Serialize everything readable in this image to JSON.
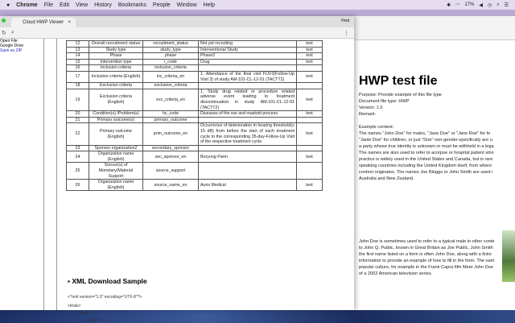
{
  "menubar": {
    "items": [
      "Chrome",
      "File",
      "Edit",
      "View",
      "History",
      "Bookmarks",
      "People",
      "Window",
      "Help"
    ],
    "battery": "17%"
  },
  "browser": {
    "tab_title": "Cloud HWP Viewer",
    "find_label": "Find",
    "sidebar": {
      "open_file": "Open File",
      "google_drive": "Google Drive",
      "save_zip": "Save as ZIP"
    }
  },
  "table": {
    "rows": [
      [
        "12",
        "Overall recruitment status",
        "recruitment_status",
        "Not yet recruiting",
        "text"
      ],
      [
        "13",
        "Study type",
        "study_type",
        "Interventional Study",
        "text"
      ],
      [
        "14",
        "Phase",
        "phase",
        "Phase3",
        "text"
      ],
      [
        "15",
        "Intervention type",
        "i_code",
        "Drug",
        "text"
      ],
      [
        "16",
        "Inclusion criteria",
        "inclusion_criteria",
        "",
        ""
      ],
      [
        "17",
        "Inclusion criteria (English)",
        "inc_criteria_en",
        "1. Attendance of the final visit FUV3(Follow-Up Visit 3) of study AM-101-CL-12-01 (TACTT2)",
        "text"
      ],
      [
        "18",
        "Exclusion criteria",
        "exclusion_criteria",
        "",
        ""
      ],
      [
        "19",
        "Exclusion criteria (English)",
        "exc_criteria_en",
        "1. Study drug related or procedure related adverse event leading to treatment discontinuation in study AM-101-CL-12-01 (TACTT2)",
        "text"
      ],
      [
        "20",
        "Condition(s) /Problem(s)",
        "hc_code",
        "Diseases of the ear and mastoid process",
        "text"
      ],
      [
        "21",
        "Primary outcome(s)",
        "primary_outcome",
        "",
        ""
      ],
      [
        "22",
        "Primary outcome (English)",
        "prim_outcome_en",
        "Occurrence of deterioration in hearing threshold(≥ 15 dB) from before the start of each treatment cycle to the corresponding 35-day-Follow-Up Visit of the respective treatment cycle",
        "text"
      ],
      [
        "23",
        "Sponsor organization2",
        "secondary_sponsor",
        "",
        ""
      ],
      [
        "24",
        "Organization name (English)",
        "sec_sponsor_en",
        "Boryung Parm",
        "text"
      ],
      [
        "25",
        "Soruce(s) of Monetary/Material Support",
        "source_support",
        "",
        ""
      ],
      [
        "26",
        "Organization name (English)",
        "source_name_en",
        "Auris Medical",
        "text"
      ]
    ]
  },
  "xml_section": {
    "heading": "▪ XML Download Sample",
    "lines": [
      "<?xml version=\"1.0\" encoding=\"UTF-8\"?>",
      "<trials>",
      "<trial>",
      "<main>"
    ]
  },
  "right_doc": {
    "title": "HWP test file",
    "meta": [
      "Purpose: Provide example of this file type",
      "Document file type: HWP",
      "Version: 1.0",
      "Remark:"
    ],
    "example_label": "Example content:",
    "para1": [
      "The names \"John Doe\" for males, \"Jane Doe\" or \"Jane Roe\" for fe",
      "\"Janie Doe\" for children, or just \"Doe\" non-gender-specifically are u",
      "a party whose true identity is unknown or must be withheld in a lega",
      "The names are also used to refer to acorpse or hospital patient who",
      "practice is widely used in the United States and Canada, but is rare",
      "speaking countries including the United Kingdom itself, from where",
      "context originates. The names Joe Bloggs or John Smith are used i",
      "Australia and New Zealand."
    ],
    "para2": [
      "John Doe is sometimes used to refer to a typical male in other conte",
      "to John Q. Public, known in Great Britain as Joe Public, John Smith",
      "the first name listed on a form is often John Doe, along with a fictio",
      "information to provide an example of how to fill in the form. The nam",
      "popular culture, for example in the Frank Capra film Meet John Doe",
      "of a 2002 American television series."
    ]
  }
}
